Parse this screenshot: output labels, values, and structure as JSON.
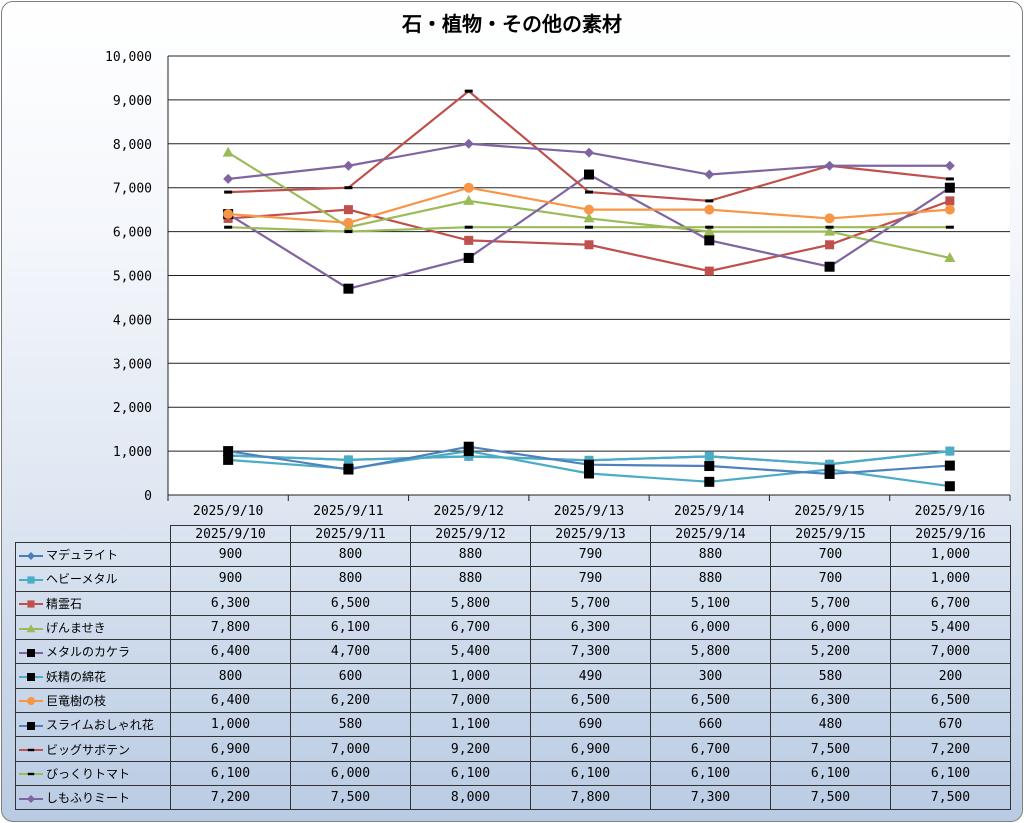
{
  "chart_data": {
    "type": "line",
    "title": "石・植物・その他の素材",
    "categories": [
      "2025/9/10",
      "2025/9/11",
      "2025/9/12",
      "2025/9/13",
      "2025/9/14",
      "2025/9/15",
      "2025/9/16"
    ],
    "ylim": [
      0,
      10000
    ],
    "yticks": [
      "0",
      "1,000",
      "2,000",
      "3,000",
      "4,000",
      "5,000",
      "6,000",
      "7,000",
      "8,000",
      "9,000",
      "10,000"
    ],
    "grid": true,
    "legend": "data-table",
    "series": [
      {
        "name": "マデュライト",
        "color": "#4a7ebb",
        "marker": "diamond",
        "values": [
          900,
          800,
          880,
          790,
          880,
          700,
          1000
        ],
        "labels": [
          "900",
          "800",
          "880",
          "790",
          "880",
          "700",
          "1,000"
        ]
      },
      {
        "name": "ヘビーメタル",
        "color": "#4bacc6",
        "marker": "square",
        "values": [
          900,
          800,
          880,
          790,
          880,
          700,
          1000
        ],
        "labels": [
          "900",
          "800",
          "880",
          "790",
          "880",
          "700",
          "1,000"
        ]
      },
      {
        "name": "精霊石",
        "color": "#c0504d",
        "marker": "square",
        "values": [
          6300,
          6500,
          5800,
          5700,
          5100,
          5700,
          6700
        ],
        "labels": [
          "6,300",
          "6,500",
          "5,800",
          "5,700",
          "5,100",
          "5,700",
          "6,700"
        ]
      },
      {
        "name": "げんませき",
        "color": "#9bbb59",
        "marker": "triangle",
        "values": [
          7800,
          6100,
          6700,
          6300,
          6000,
          6000,
          5400
        ],
        "labels": [
          "7,800",
          "6,100",
          "6,700",
          "6,300",
          "6,000",
          "6,000",
          "5,400"
        ]
      },
      {
        "name": "メタルのカケラ",
        "color": "#8064a2",
        "marker": "blacksquare",
        "values": [
          6400,
          4700,
          5400,
          7300,
          5800,
          5200,
          7000
        ],
        "labels": [
          "6,400",
          "4,700",
          "5,400",
          "7,300",
          "5,800",
          "5,200",
          "7,000"
        ]
      },
      {
        "name": "妖精の綿花",
        "color": "#4bacc6",
        "marker": "blacksquare",
        "values": [
          800,
          600,
          1000,
          490,
          300,
          580,
          200
        ],
        "labels": [
          "800",
          "600",
          "1,000",
          "490",
          "300",
          "580",
          "200"
        ]
      },
      {
        "name": "巨竜樹の枝",
        "color": "#f79646",
        "marker": "circle",
        "values": [
          6400,
          6200,
          7000,
          6500,
          6500,
          6300,
          6500
        ],
        "labels": [
          "6,400",
          "6,200",
          "7,000",
          "6,500",
          "6,500",
          "6,300",
          "6,500"
        ]
      },
      {
        "name": "スライムおしゃれ花",
        "color": "#4f81bd",
        "marker": "blacksquare",
        "values": [
          1000,
          580,
          1100,
          690,
          660,
          480,
          670
        ],
        "labels": [
          "1,000",
          "580",
          "1,100",
          "690",
          "660",
          "480",
          "670"
        ]
      },
      {
        "name": "ビッグサボテン",
        "color": "#c0504d",
        "marker": "dash",
        "values": [
          6900,
          7000,
          9200,
          6900,
          6700,
          7500,
          7200
        ],
        "labels": [
          "6,900",
          "7,000",
          "9,200",
          "6,900",
          "6,700",
          "7,500",
          "7,200"
        ]
      },
      {
        "name": "びっくりトマト",
        "color": "#9bbb59",
        "marker": "dash",
        "values": [
          6100,
          6000,
          6100,
          6100,
          6100,
          6100,
          6100
        ],
        "labels": [
          "6,100",
          "6,000",
          "6,100",
          "6,100",
          "6,100",
          "6,100",
          "6,100"
        ]
      },
      {
        "name": "しもふりミート",
        "color": "#8064a2",
        "marker": "diamond",
        "values": [
          7200,
          7500,
          8000,
          7800,
          7300,
          7500,
          7500
        ],
        "labels": [
          "7,200",
          "7,500",
          "8,000",
          "7,800",
          "7,300",
          "7,500",
          "7,500"
        ]
      }
    ]
  }
}
